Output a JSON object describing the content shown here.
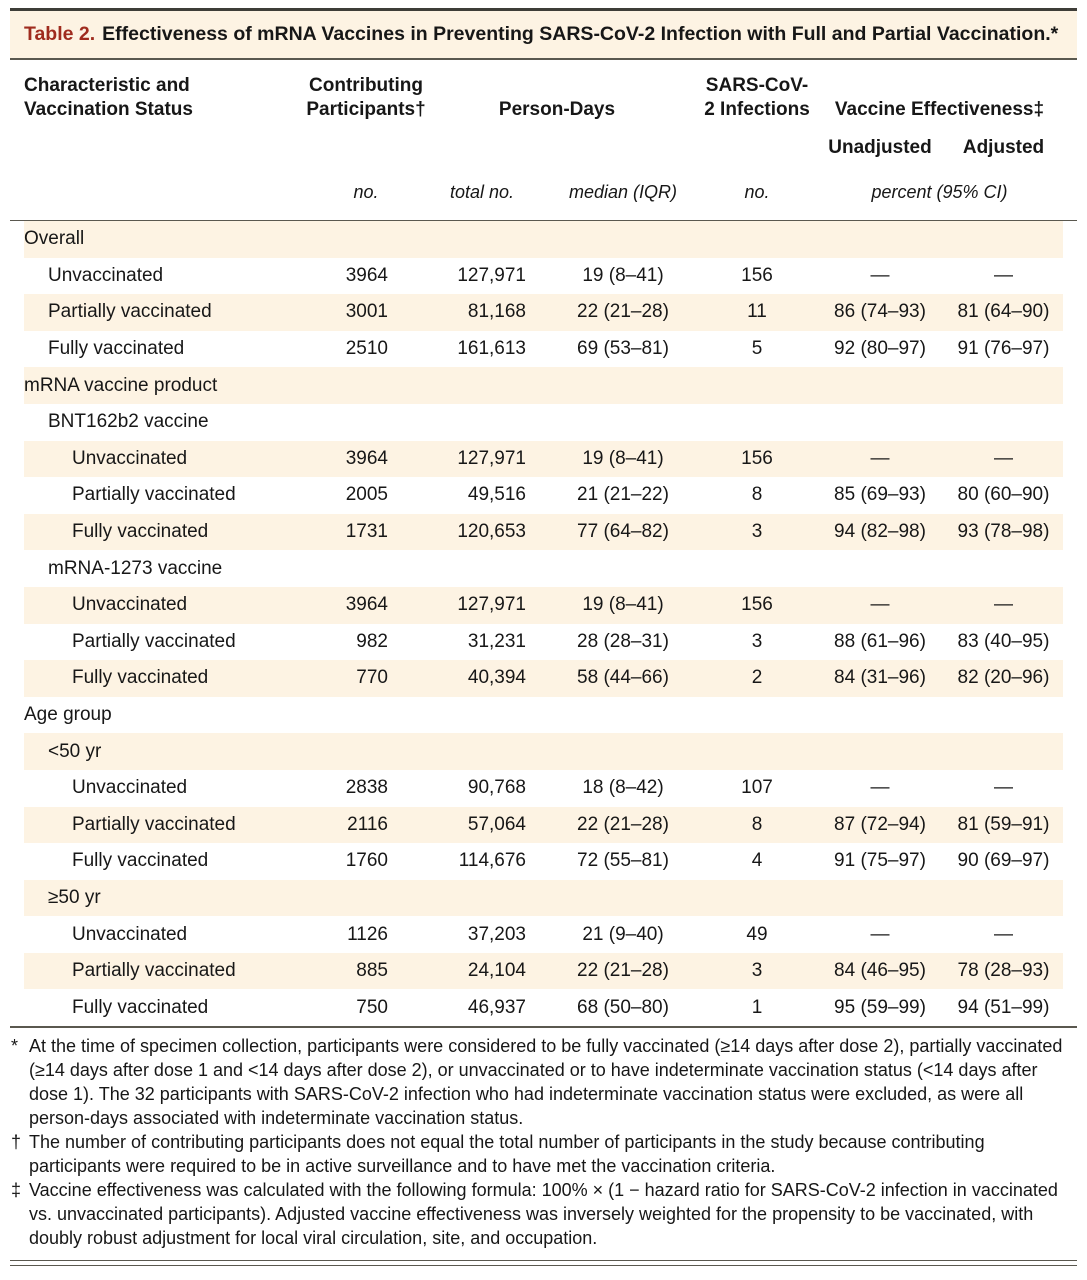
{
  "colors": {
    "stripe_bg": "#fdf3e3",
    "table_number_red": "#9f2b1e",
    "rule_dark": "#3e3d38",
    "text": "#171717"
  },
  "title": {
    "label": "Table 2.",
    "text": "Effectiveness of mRNA Vaccines in Preventing SARS-CoV-2 Infection with Full and Partial Vaccination.*"
  },
  "header": {
    "col_characteristic": "Characteristic and Vaccination Status",
    "col_participants": "Contributing Participants†",
    "col_person_days": "Person-Days",
    "col_infections": "SARS-CoV-2 Infections",
    "col_ve": "Vaccine Effectiveness‡",
    "col_unadjusted": "Unadjusted",
    "col_adjusted": "Adjusted",
    "unit_no1": "no.",
    "unit_total": "total no.",
    "unit_median": "median (IQR)",
    "unit_no2": "no.",
    "unit_percent": "percent (95% CI)"
  },
  "table": {
    "rows": [
      {
        "type": "section",
        "indent": 0,
        "label": "Overall"
      },
      {
        "type": "data",
        "indent": 1,
        "label": "Unvaccinated",
        "cells": [
          "3964",
          "127,971",
          "19 (8–41)",
          "156",
          "—",
          "—"
        ]
      },
      {
        "type": "data",
        "indent": 1,
        "label": "Partially vaccinated",
        "cells": [
          "3001",
          "81,168",
          "22 (21–28)",
          "11",
          "86 (74–93)",
          "81 (64–90)"
        ]
      },
      {
        "type": "data",
        "indent": 1,
        "label": "Fully vaccinated",
        "cells": [
          "2510",
          "161,613",
          "69 (53–81)",
          "5",
          "92 (80–97)",
          "91 (76–97)"
        ]
      },
      {
        "type": "section",
        "indent": 0,
        "label": "mRNA vaccine product"
      },
      {
        "type": "subsection",
        "indent": 1,
        "label": "BNT162b2 vaccine"
      },
      {
        "type": "data",
        "indent": 2,
        "label": "Unvaccinated",
        "cells": [
          "3964",
          "127,971",
          "19 (8–41)",
          "156",
          "—",
          "—"
        ]
      },
      {
        "type": "data",
        "indent": 2,
        "label": "Partially vaccinated",
        "cells": [
          "2005",
          "49,516",
          "21 (21–22)",
          "8",
          "85 (69–93)",
          "80 (60–90)"
        ]
      },
      {
        "type": "data",
        "indent": 2,
        "label": "Fully vaccinated",
        "cells": [
          "1731",
          "120,653",
          "77 (64–82)",
          "3",
          "94 (82–98)",
          "93 (78–98)"
        ]
      },
      {
        "type": "subsection",
        "indent": 1,
        "label": "mRNA-1273 vaccine"
      },
      {
        "type": "data",
        "indent": 2,
        "label": "Unvaccinated",
        "cells": [
          "3964",
          "127,971",
          "19 (8–41)",
          "156",
          "—",
          "—"
        ]
      },
      {
        "type": "data",
        "indent": 2,
        "label": "Partially vaccinated",
        "cells": [
          "982",
          "31,231",
          "28 (28–31)",
          "3",
          "88 (61–96)",
          "83 (40–95)"
        ]
      },
      {
        "type": "data",
        "indent": 2,
        "label": "Fully vaccinated",
        "cells": [
          "770",
          "40,394",
          "58 (44–66)",
          "2",
          "84 (31–96)",
          "82 (20–96)"
        ]
      },
      {
        "type": "section",
        "indent": 0,
        "label": "Age group"
      },
      {
        "type": "subsection",
        "indent": 1,
        "label": "<50 yr"
      },
      {
        "type": "data",
        "indent": 2,
        "label": "Unvaccinated",
        "cells": [
          "2838",
          "90,768",
          "18 (8–42)",
          "107",
          "—",
          "—"
        ]
      },
      {
        "type": "data",
        "indent": 2,
        "label": "Partially vaccinated",
        "cells": [
          "2116",
          "57,064",
          "22 (21–28)",
          "8",
          "87 (72–94)",
          "81 (59–91)"
        ]
      },
      {
        "type": "data",
        "indent": 2,
        "label": "Fully vaccinated",
        "cells": [
          "1760",
          "114,676",
          "72 (55–81)",
          "4",
          "91 (75–97)",
          "90 (69–97)"
        ]
      },
      {
        "type": "subsection",
        "indent": 1,
        "label": "≥50 yr"
      },
      {
        "type": "data",
        "indent": 2,
        "label": "Unvaccinated",
        "cells": [
          "1126",
          "37,203",
          "21 (9–40)",
          "49",
          "—",
          "—"
        ]
      },
      {
        "type": "data",
        "indent": 2,
        "label": "Partially vaccinated",
        "cells": [
          "885",
          "24,104",
          "22 (21–28)",
          "3",
          "84 (46–95)",
          "78 (28–93)"
        ]
      },
      {
        "type": "data",
        "indent": 2,
        "label": "Fully vaccinated",
        "cells": [
          "750",
          "46,937",
          "68 (50–80)",
          "1",
          "95 (59–99)",
          "94 (51–99)"
        ]
      }
    ]
  },
  "footnotes": [
    {
      "marker": "*",
      "text": "At the time of specimen collection, participants were considered to be fully vaccinated (≥14 days after dose 2), partially vaccinated (≥14 days after dose 1 and <14 days after dose 2), or unvaccinated or to have indeterminate vaccination status (<14 days after dose 1). The 32 participants with SARS-CoV-2 infection who had indeterminate vaccination status were excluded, as were all person-days associated with indeterminate vaccination status."
    },
    {
      "marker": "†",
      "text": "The number of contributing participants does not equal the total number of participants in the study because contributing participants were required to be in active surveillance and to have met the vaccination criteria."
    },
    {
      "marker": "‡",
      "text": "Vaccine effectiveness was calculated with the following formula: 100% × (1 − hazard ratio for SARS-CoV-2 infection in vaccinated vs. unvaccinated participants). Adjusted vaccine effectiveness was inversely weighted for the propensity to be vaccinated, with doubly robust adjustment for local viral circulation, site, and occupation."
    }
  ]
}
